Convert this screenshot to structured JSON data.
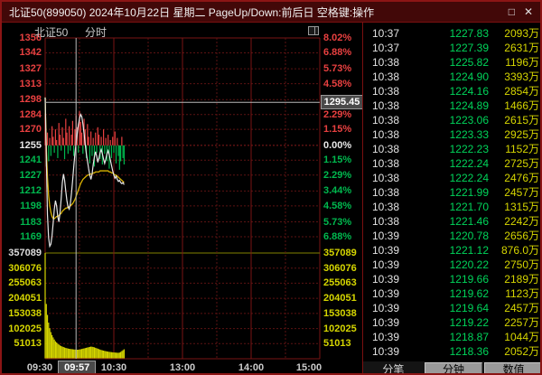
{
  "window": {
    "title": "北证50(899050) 2024年10月22日 星期二 PageUp/Down:前后日 空格键:操作",
    "maximize_glyph": "□",
    "close_glyph": "✕"
  },
  "chart": {
    "instrument": "北证50",
    "mode": "分时",
    "crosshair": {
      "time": "09:57",
      "price": "1295.45"
    },
    "colors": {
      "up": "#e84040",
      "down": "#00b84e",
      "flat": "#e8e8e8",
      "price_line": "#e8e8e8",
      "avg_line": "#d9b300",
      "volume": "#d6d600",
      "grid": "#5c1212",
      "grid_strong": "#7a1515",
      "panel_divider": "#828200",
      "crosshair": "#b8b8b8"
    },
    "price_axis": {
      "values": [
        1356,
        1342,
        1327,
        1313,
        1298,
        1284,
        1270,
        1255,
        1241,
        1227,
        1212,
        1198,
        1183,
        1169
      ],
      "prev_close": 1255
    },
    "pct_axis": [
      "8.02%",
      "6.88%",
      "5.73%",
      "4.58%",
      "3.44%",
      "2.29%",
      "1.15%",
      "0.00%",
      "1.15%",
      "2.29%",
      "3.44%",
      "4.58%",
      "5.73%",
      "6.88%"
    ],
    "volume_axis": [
      357089,
      306076,
      255063,
      204051,
      153038,
      102025,
      51013
    ],
    "time_axis": [
      {
        "label": "09:30",
        "minute": 0
      },
      {
        "label": "10:30",
        "minute": 60
      },
      {
        "label": "13:00",
        "minute": 120
      },
      {
        "label": "14:00",
        "minute": 180
      },
      {
        "label": "15:00",
        "minute": 240
      }
    ],
    "chart_data": {
      "type": "line",
      "title": "北证50 分时",
      "session_minutes": 240,
      "minutes_plotted": 70,
      "ylim": [
        1169,
        1356
      ],
      "prev_close": 1255,
      "volume_ylim": [
        0,
        357089
      ],
      "series": [
        {
          "name": "price",
          "values": [
            1300,
            1245,
            1190,
            1168,
            1160,
            1162,
            1170,
            1182,
            1195,
            1203,
            1198,
            1188,
            1183,
            1192,
            1205,
            1220,
            1228,
            1222,
            1212,
            1203,
            1197,
            1195,
            1200,
            1210,
            1222,
            1235,
            1247,
            1257,
            1266,
            1274,
            1280,
            1284,
            1282,
            1275,
            1266,
            1256,
            1247,
            1240,
            1233,
            1227,
            1223,
            1228,
            1237,
            1244,
            1249,
            1245,
            1239,
            1243,
            1248,
            1251,
            1247,
            1242,
            1238,
            1242,
            1247,
            1250,
            1246,
            1241,
            1236,
            1231,
            1227,
            1224,
            1226,
            1223,
            1221,
            1222,
            1220,
            1219,
            1220,
            1218
          ]
        },
        {
          "name": "avg",
          "values": [
            1300,
            1252,
            1225,
            1208,
            1198,
            1192,
            1188,
            1186,
            1186,
            1187,
            1188,
            1188,
            1189,
            1190,
            1191,
            1193,
            1194,
            1195,
            1196,
            1196,
            1197,
            1197,
            1198,
            1199,
            1200,
            1202,
            1204,
            1207,
            1210,
            1213,
            1216,
            1219,
            1221,
            1223,
            1224,
            1225,
            1226,
            1227,
            1227,
            1228,
            1228,
            1228,
            1229,
            1229,
            1230,
            1230,
            1230,
            1230,
            1231,
            1231,
            1231,
            1231,
            1231,
            1231,
            1231,
            1231,
            1230,
            1230,
            1229,
            1229,
            1228,
            1227,
            1227,
            1226,
            1225,
            1224,
            1223,
            1222,
            1221,
            1220
          ]
        }
      ],
      "minute_change_bars": [
        30,
        -20,
        12,
        -15,
        7,
        -10,
        18,
        8,
        -7,
        15,
        5,
        -12,
        21,
        10,
        -5,
        17,
        7,
        -13,
        25,
        12,
        -8,
        18,
        -5,
        10,
        23,
        -10,
        15,
        28,
        17,
        -7,
        32,
        22,
        12,
        -8,
        25,
        15,
        -12,
        20,
        8,
        -17,
        13,
        -10,
        7,
        -20,
        12,
        -7,
        17,
        10,
        -13,
        8,
        -18,
        15,
        -8,
        7,
        -15,
        10,
        -22,
        5,
        -12,
        8,
        -7,
        13,
        -17,
        7,
        -10,
        -23,
        -15,
        8,
        -12,
        -18
      ],
      "volume_bars": [
        357000,
        185000,
        148000,
        122000,
        103000,
        90000,
        80000,
        72000,
        65000,
        59000,
        55000,
        51000,
        48000,
        45000,
        43000,
        41000,
        39500,
        38000,
        36500,
        35500,
        34500,
        33500,
        33000,
        32500,
        32000,
        31500,
        31000,
        30800,
        30500,
        30500,
        31000,
        32000,
        33000,
        34000,
        35000,
        36000,
        37000,
        38000,
        39000,
        40000,
        41000,
        40500,
        39500,
        38500,
        37000,
        35500,
        34000,
        32500,
        31000,
        29500,
        28500,
        27500,
        26500,
        25500,
        24800,
        24000,
        23300,
        22800,
        22300,
        21800,
        21400,
        21000,
        20600,
        20300,
        20000,
        21000,
        23000,
        26000,
        29000,
        32000
      ]
    }
  },
  "quote_panel": {
    "columns": [
      "time",
      "price",
      "volume"
    ],
    "rows": [
      [
        "10:37",
        "1227.83",
        "2093万"
      ],
      [
        "10:37",
        "1227.39",
        "2631万"
      ],
      [
        "10:38",
        "1225.82",
        "1196万"
      ],
      [
        "10:38",
        "1224.90",
        "3393万"
      ],
      [
        "10:38",
        "1224.16",
        "2854万"
      ],
      [
        "10:38",
        "1224.89",
        "1466万"
      ],
      [
        "10:38",
        "1223.06",
        "2615万"
      ],
      [
        "10:38",
        "1223.33",
        "2925万"
      ],
      [
        "10:38",
        "1222.23",
        "1152万"
      ],
      [
        "10:38",
        "1222.24",
        "2725万"
      ],
      [
        "10:38",
        "1222.24",
        "2476万"
      ],
      [
        "10:38",
        "1221.99",
        "2457万"
      ],
      [
        "10:38",
        "1221.70",
        "1315万"
      ],
      [
        "10:38",
        "1221.46",
        "2242万"
      ],
      [
        "10:39",
        "1220.78",
        "2656万"
      ],
      [
        "10:39",
        "1221.12",
        "876.0万"
      ],
      [
        "10:39",
        "1220.22",
        "2750万"
      ],
      [
        "10:39",
        "1219.66",
        "2189万"
      ],
      [
        "10:39",
        "1219.62",
        "1123万"
      ],
      [
        "10:39",
        "1219.64",
        "2457万"
      ],
      [
        "10:39",
        "1219.22",
        "2257万"
      ],
      [
        "10:39",
        "1218.87",
        "1044万"
      ],
      [
        "10:39",
        "1218.36",
        "2052万"
      ]
    ],
    "tabs": [
      {
        "label": "分笔",
        "active": true
      },
      {
        "label": "分钟",
        "active": false
      },
      {
        "label": "数值",
        "active": false
      }
    ]
  }
}
